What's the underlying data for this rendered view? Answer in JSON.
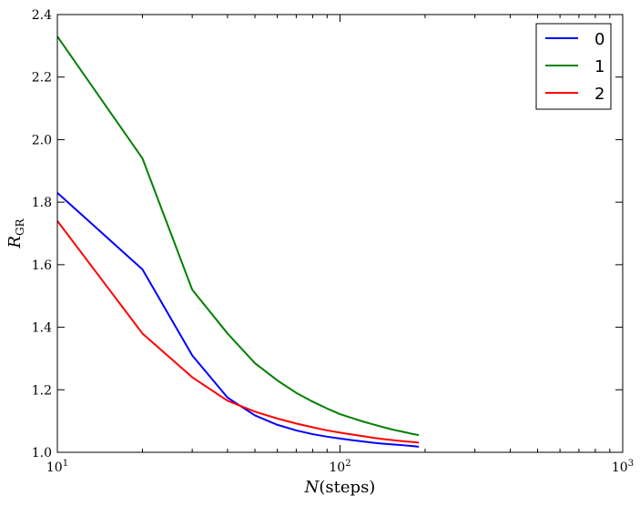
{
  "chart_data": {
    "type": "line",
    "x_scale": "log",
    "xlim": [
      10,
      1000
    ],
    "ylim": [
      1.0,
      2.4
    ],
    "x_ticks": [
      {
        "value": 10,
        "base": "10",
        "exp": "1"
      },
      {
        "value": 100,
        "base": "10",
        "exp": "2"
      },
      {
        "value": 1000,
        "base": "10",
        "exp": "3"
      }
    ],
    "y_ticks": [
      1.0,
      1.2,
      1.4,
      1.6,
      1.8,
      2.0,
      2.2,
      2.4
    ],
    "y_tick_labels": [
      "1.0",
      "1.2",
      "1.4",
      "1.6",
      "1.8",
      "2.0",
      "2.2",
      "2.4"
    ],
    "xlabel": {
      "italic": "N",
      "rest": "(steps)"
    },
    "ylabel": {
      "italic": "R",
      "sub": "GR"
    },
    "grid": false,
    "legend_position": "top-right",
    "x": [
      10,
      20,
      30,
      40,
      50,
      60,
      70,
      80,
      90,
      100,
      110,
      120,
      130,
      140,
      150,
      160,
      170,
      180,
      190
    ],
    "series": [
      {
        "name": "0",
        "color": "#0000ff",
        "values": [
          1.83,
          1.585,
          1.31,
          1.175,
          1.118,
          1.088,
          1.07,
          1.058,
          1.05,
          1.044,
          1.039,
          1.035,
          1.031,
          1.028,
          1.026,
          1.024,
          1.022,
          1.02,
          1.018
        ]
      },
      {
        "name": "1",
        "color": "#008000",
        "values": [
          2.33,
          1.94,
          1.52,
          1.38,
          1.285,
          1.23,
          1.19,
          1.162,
          1.14,
          1.122,
          1.11,
          1.099,
          1.09,
          1.082,
          1.075,
          1.069,
          1.064,
          1.059,
          1.055
        ]
      },
      {
        "name": "2",
        "color": "#ff0000",
        "values": [
          1.74,
          1.38,
          1.24,
          1.165,
          1.13,
          1.108,
          1.092,
          1.08,
          1.07,
          1.063,
          1.057,
          1.052,
          1.047,
          1.043,
          1.04,
          1.037,
          1.035,
          1.033,
          1.031
        ]
      }
    ]
  }
}
